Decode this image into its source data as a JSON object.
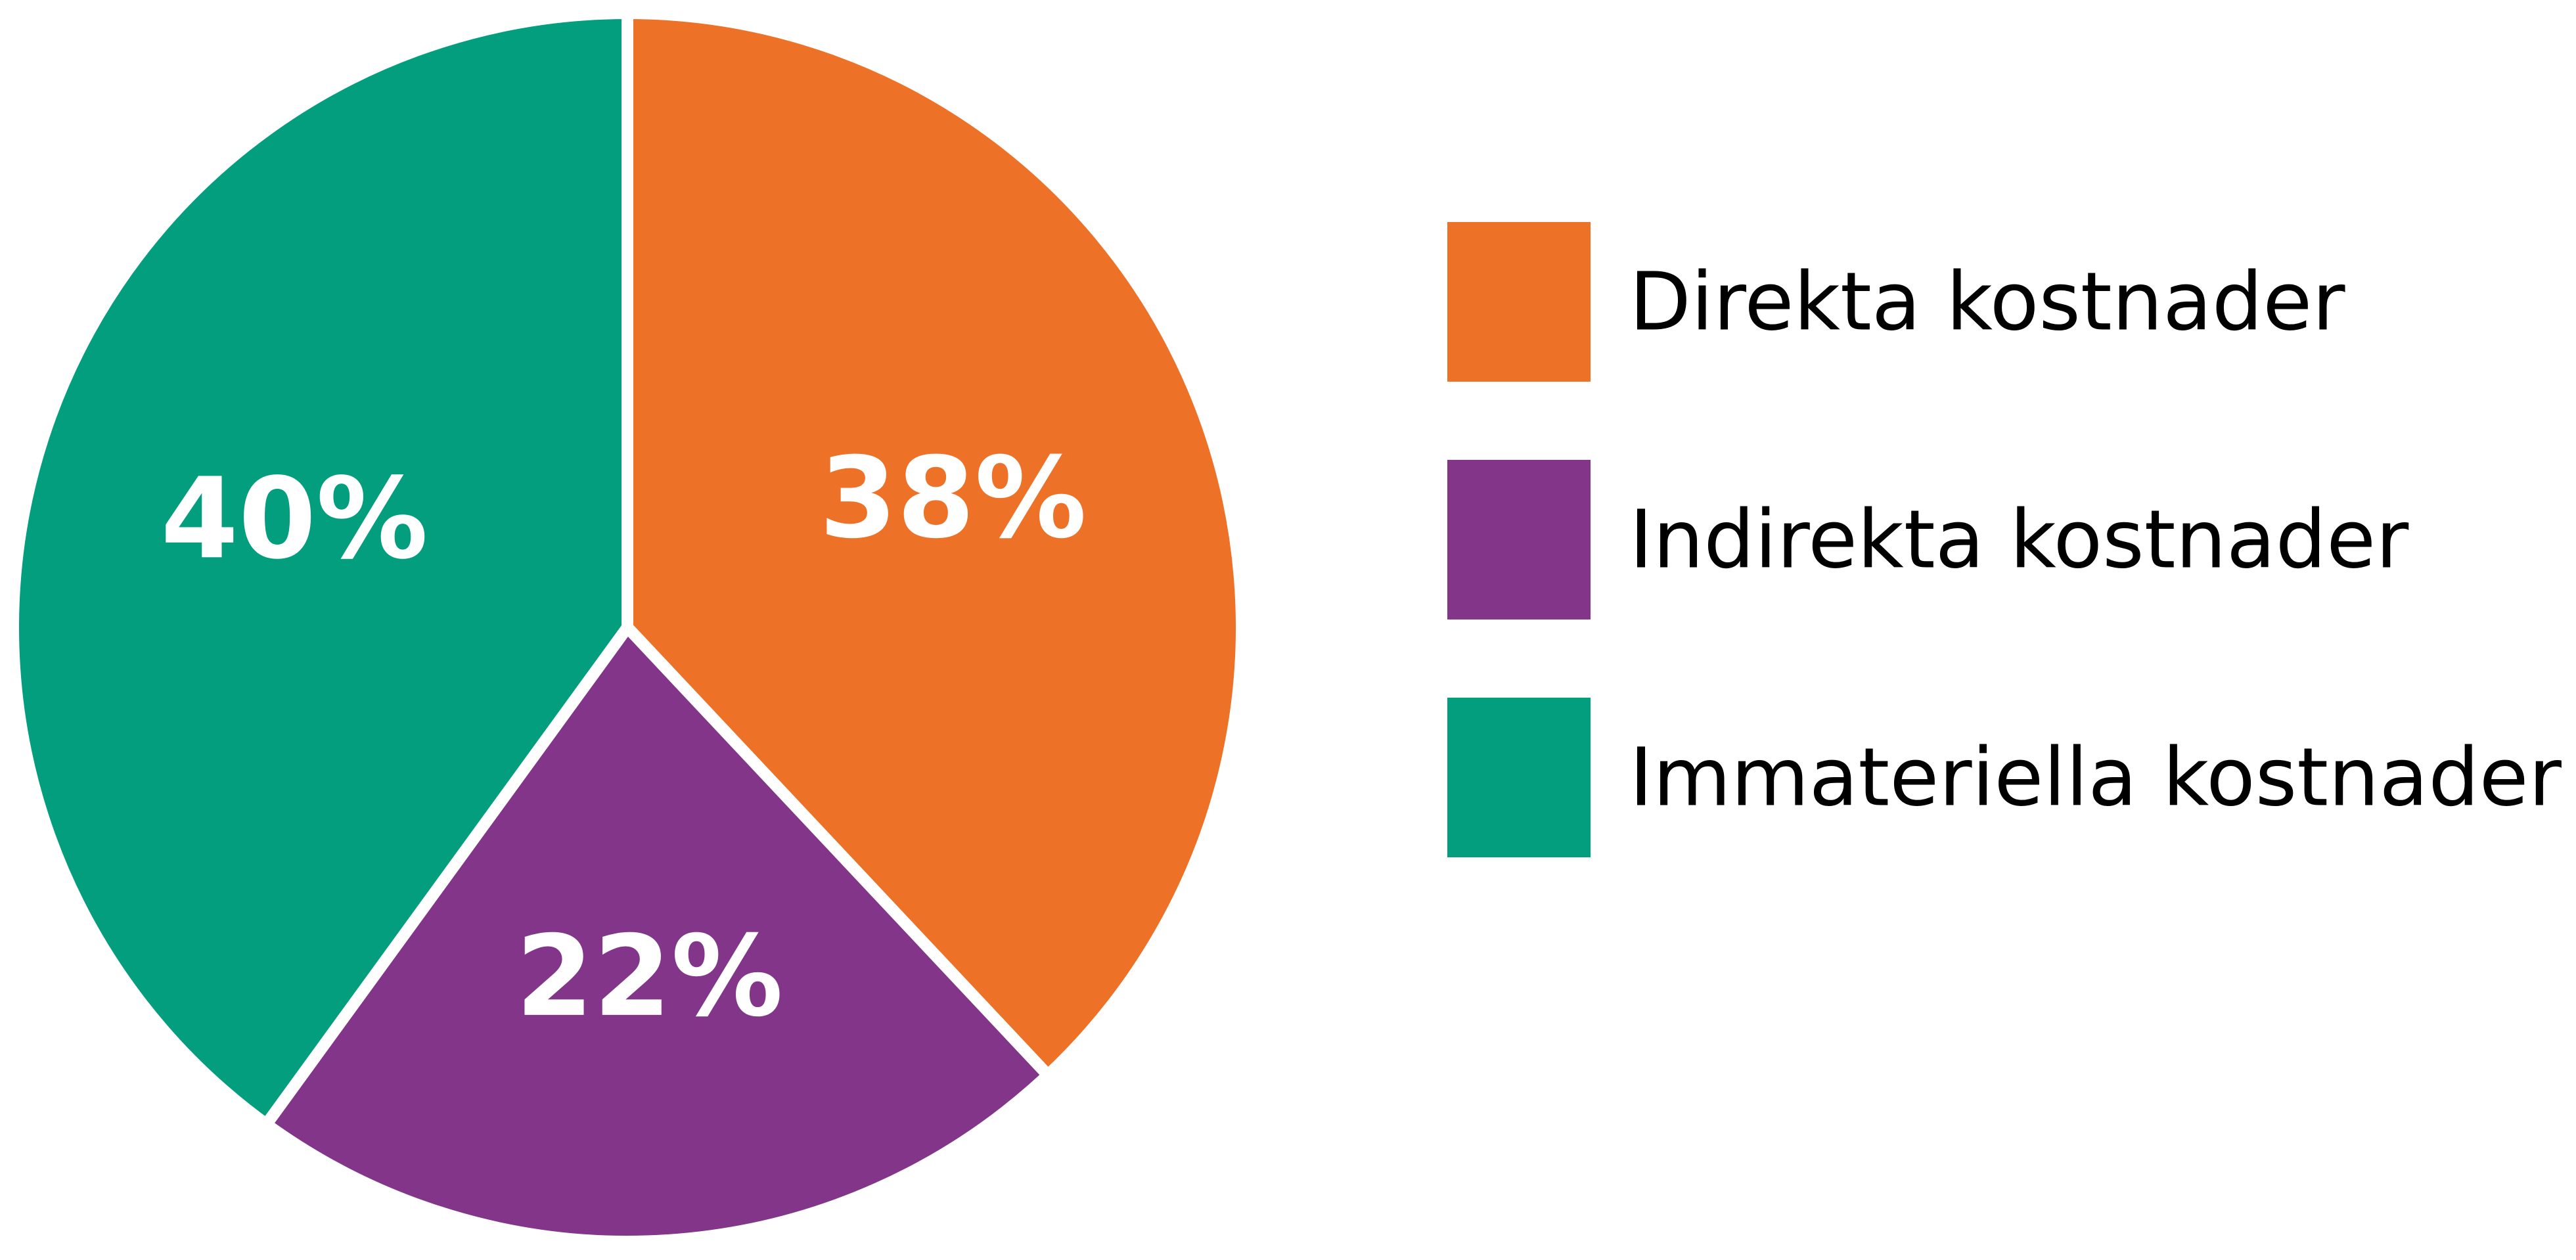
{
  "chart_data": {
    "type": "pie",
    "title": "",
    "slices": [
      {
        "label": "Direkta kostnader",
        "value": 38,
        "display": "38%",
        "color": "#EE7128"
      },
      {
        "label": "Indirekta kostnader",
        "value": 22,
        "display": "22%",
        "color": "#823589"
      },
      {
        "label": "Immateriella kostnader",
        "value": 40,
        "display": "40%",
        "color": "#029E7E"
      }
    ],
    "legend_position": "right",
    "start_angle": "12 o'clock",
    "direction": "clockwise"
  }
}
